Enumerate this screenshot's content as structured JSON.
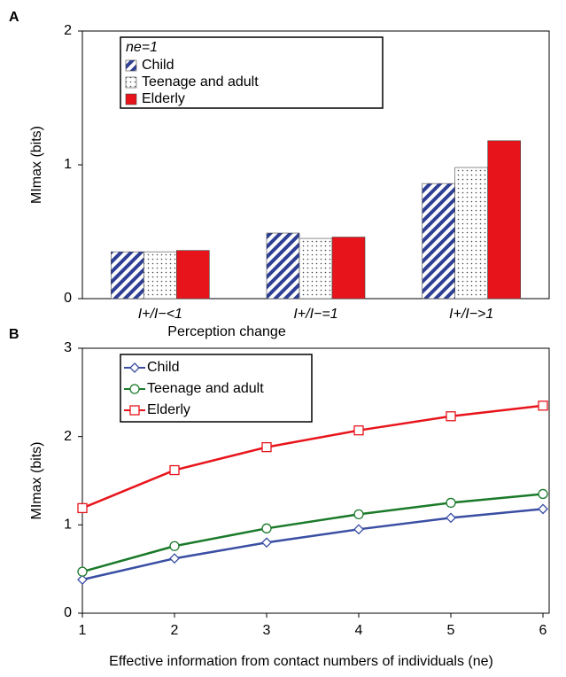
{
  "chart_data": [
    {
      "type": "bar",
      "panel": "A",
      "y_label": "MImax (bits)",
      "x_label": "Perception change",
      "legend_title": "ne=1",
      "categories": [
        "I+/I−<1",
        "I+/I−=1",
        "I+/I−>1"
      ],
      "series": [
        {
          "name": "Child",
          "color": "#2e3f95",
          "pattern": "hatch",
          "values": [
            0.35,
            0.49,
            0.86
          ]
        },
        {
          "name": "Teenage and adult",
          "color": "#555555",
          "pattern": "dots",
          "values": [
            0.35,
            0.45,
            0.98
          ]
        },
        {
          "name": "Elderly",
          "color": "#e8141b",
          "pattern": "solid",
          "values": [
            0.36,
            0.46,
            1.18
          ]
        }
      ],
      "ylim": [
        0,
        2
      ],
      "yticks": [
        0,
        1,
        2
      ]
    },
    {
      "type": "line",
      "panel": "B",
      "y_label": "MImax (bits)",
      "x_label": "Effective information from contact numbers of individuals (ne)",
      "x": [
        1,
        2,
        3,
        4,
        5,
        6
      ],
      "series": [
        {
          "name": "Child",
          "color": "#3a4fa3",
          "marker": "diamond",
          "values": [
            0.38,
            0.62,
            0.8,
            0.95,
            1.08,
            1.18
          ]
        },
        {
          "name": "Teenage and adult",
          "color": "#1a7a2a",
          "marker": "circle",
          "values": [
            0.47,
            0.76,
            0.96,
            1.12,
            1.25,
            1.35
          ]
        },
        {
          "name": "Elderly",
          "color": "#e8141b",
          "marker": "square",
          "values": [
            1.19,
            1.62,
            1.88,
            2.07,
            2.23,
            2.35
          ]
        }
      ],
      "xlim": [
        1,
        6
      ],
      "xticks": [
        1,
        2,
        3,
        4,
        5,
        6
      ],
      "ylim": [
        0,
        3
      ],
      "yticks": [
        0,
        1,
        2,
        3
      ]
    }
  ]
}
